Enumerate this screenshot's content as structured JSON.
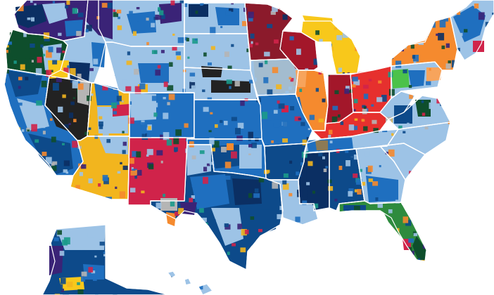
{
  "map": {
    "palette": {
      "light_blue": "#9dc3e6",
      "mid_blue": "#1f6fbf",
      "dark_blue": "#0d4a8a",
      "navy": "#0b2f63",
      "deep_purple": "#3a2377",
      "crimson": "#d0234a",
      "maroon": "#8b1a2b",
      "dark_red": "#a3172a",
      "red": "#e6302e",
      "orange": "#f58a2e",
      "light_orange": "#f7a45c",
      "gold": "#f2b51e",
      "yellow": "#f8c81b",
      "dark_green": "#0e4e2c",
      "green": "#2e8b3e",
      "bright_green": "#4cc24a",
      "teal": "#1b9a8a",
      "black": "#222222",
      "gray": "#b5b5b5",
      "tan": "#8c7a55",
      "white_border": "#ffffff"
    },
    "dominant_fill_by_state": {
      "washington": "deep_purple",
      "oregon": "dark_green",
      "california": "mid_blue",
      "nevada": "black",
      "idaho": "light_blue",
      "montana": "light_blue",
      "wyoming": "light_blue",
      "utah": "gold",
      "arizona": "gold",
      "colorado": "mid_blue",
      "new_mexico": "crimson",
      "north_dakota": "light_blue",
      "south_dakota": "light_blue",
      "nebraska": "light_blue",
      "kansas": "mid_blue",
      "oklahoma": "mid_blue",
      "texas": "dark_blue",
      "minnesota": "maroon",
      "iowa": "light_blue",
      "missouri": "mid_blue",
      "arkansas": "dark_blue",
      "louisiana": "light_blue",
      "wisconsin": "dark_red",
      "illinois": "orange",
      "michigan": "yellow",
      "indiana": "dark_red",
      "ohio": "red",
      "kentucky": "red",
      "tennessee": "light_blue",
      "mississippi": "navy",
      "alabama": "dark_blue",
      "georgia": "light_blue",
      "florida": "green",
      "south_carolina": "light_blue",
      "north_carolina": "light_blue",
      "virginia": "light_blue",
      "west_virginia": "light_blue",
      "pennsylvania": "light_blue",
      "new_york": "orange",
      "new_england": "light_blue",
      "alaska": "dark_blue",
      "hawaii": "light_blue"
    }
  }
}
